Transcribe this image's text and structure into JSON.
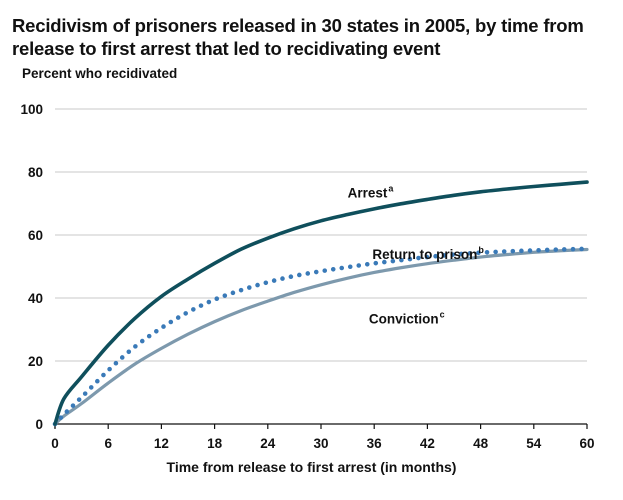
{
  "chart_data": {
    "type": "line",
    "title_lines": [
      "Recidivism of prisoners released in 30 states in 2005, by time from",
      "release to first arrest that led to recidivating event"
    ],
    "ylabel": "Percent who recidivated",
    "xlabel": "Time from release to first arrest (in months)",
    "xlim": [
      0,
      60
    ],
    "ylim": [
      0,
      100
    ],
    "x_ticks": [
      0,
      6,
      12,
      18,
      24,
      30,
      36,
      42,
      48,
      54,
      60
    ],
    "y_ticks": [
      0,
      20,
      40,
      60,
      80,
      100
    ],
    "grid": "horizontal",
    "series": [
      {
        "name": "Arrest",
        "superscript": "a",
        "style": "solid",
        "color": "#0f4f5c",
        "label_at": [
          33,
          73.5
        ],
        "x": [
          0,
          1,
          3,
          6,
          9,
          12,
          15,
          18,
          21,
          24,
          27,
          30,
          33,
          36,
          39,
          42,
          45,
          48,
          51,
          54,
          57,
          60
        ],
        "values": [
          0,
          8,
          15,
          25,
          33.5,
          40.5,
          46,
          51,
          55.5,
          59,
          62,
          64.5,
          66.5,
          68.3,
          69.9,
          71.3,
          72.6,
          73.7,
          74.6,
          75.4,
          76.1,
          76.8
        ]
      },
      {
        "name": "Return to prison",
        "superscript": "b",
        "style": "dotted",
        "color": "#3a7ab8",
        "label_at": [
          35.8,
          54
        ],
        "x": [
          0,
          1,
          3,
          6,
          9,
          12,
          15,
          18,
          21,
          24,
          27,
          30,
          33,
          36,
          39,
          42,
          45,
          48,
          51,
          54,
          57,
          60
        ],
        "values": [
          0,
          3,
          8.5,
          17,
          24.5,
          30.5,
          35.5,
          39.5,
          42.5,
          45,
          47,
          48.5,
          49.8,
          51,
          52,
          53,
          53.8,
          54.4,
          54.8,
          55.1,
          55.4,
          55.6
        ]
      },
      {
        "name": "Conviction",
        "superscript": "c",
        "style": "solid",
        "color": "#7d99ad",
        "label_at": [
          35.4,
          33.5
        ],
        "x": [
          0,
          1,
          3,
          6,
          9,
          12,
          15,
          18,
          21,
          24,
          27,
          30,
          33,
          36,
          39,
          42,
          45,
          48,
          51,
          54,
          57,
          60
        ],
        "values": [
          0,
          2.5,
          6.5,
          13,
          19,
          24,
          28.5,
          32.5,
          36,
          39,
          41.8,
          44.2,
          46.3,
          48.1,
          49.6,
          50.9,
          52,
          53,
          53.8,
          54.5,
          55,
          55.4
        ]
      }
    ]
  }
}
